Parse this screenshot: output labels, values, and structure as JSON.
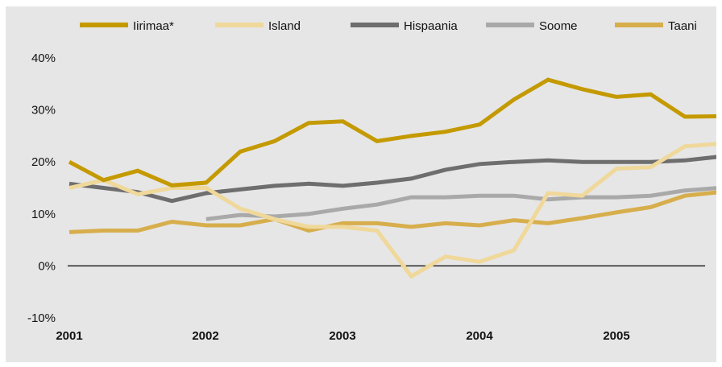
{
  "chart_data": {
    "type": "line",
    "title": "",
    "xlabel": "",
    "ylabel": "",
    "x_ticks": [
      "2001",
      "2002",
      "2003",
      "2004",
      "2005"
    ],
    "y_ticks": [
      "40%",
      "30%",
      "20%",
      "10%",
      "0%",
      "-10%"
    ],
    "ylim": [
      -10,
      40
    ],
    "xlim": [
      2001.0,
      2005.75
    ],
    "zero_line": true,
    "grid": false,
    "legend_position": "top",
    "series": [
      {
        "name": "Iirimaa*",
        "color": "#c49a00",
        "x": [
          2001.0,
          2001.25,
          2001.5,
          2001.75,
          2002.0,
          2002.25,
          2002.5,
          2002.75,
          2003.0,
          2003.25,
          2003.5,
          2003.75,
          2004.0,
          2004.25,
          2004.5,
          2004.75,
          2005.0,
          2005.25,
          2005.5,
          2005.75
        ],
        "values": [
          20.0,
          16.5,
          18.3,
          15.5,
          16.0,
          22.0,
          24.0,
          27.5,
          27.8,
          24.0,
          25.0,
          25.8,
          27.2,
          32.0,
          35.8,
          34.0,
          32.5,
          33.0,
          28.7,
          28.8
        ]
      },
      {
        "name": "Island",
        "color": "#efd89a",
        "x": [
          2001.0,
          2001.25,
          2001.5,
          2001.75,
          2002.0,
          2002.25,
          2002.5,
          2002.75,
          2003.0,
          2003.25,
          2003.5,
          2003.75,
          2004.0,
          2004.25,
          2004.5,
          2004.75,
          2005.0,
          2005.25,
          2005.5,
          2005.75
        ],
        "values": [
          15.0,
          16.5,
          13.8,
          15.0,
          15.0,
          11.0,
          9.0,
          7.5,
          7.5,
          6.8,
          -2.0,
          1.8,
          0.8,
          3.0,
          14.0,
          13.5,
          18.7,
          19.0,
          23.0,
          23.5
        ]
      },
      {
        "name": "Hispaania",
        "color": "#6e6e6e",
        "x": [
          2001.0,
          2001.25,
          2001.5,
          2001.75,
          2002.0,
          2002.25,
          2002.5,
          2002.75,
          2003.0,
          2003.25,
          2003.5,
          2003.75,
          2004.0,
          2004.25,
          2004.5,
          2004.75,
          2005.0,
          2005.25,
          2005.5,
          2005.75
        ],
        "values": [
          15.8,
          15.0,
          14.2,
          12.5,
          14.0,
          14.7,
          15.4,
          15.8,
          15.4,
          16.0,
          16.8,
          18.5,
          19.6,
          20.0,
          20.3,
          20.0,
          20.0,
          20.0,
          20.3,
          21.0
        ]
      },
      {
        "name": "Soome",
        "color": "#a9a9a9",
        "x": [
          2002.0,
          2002.25,
          2002.5,
          2002.75,
          2003.0,
          2003.25,
          2003.5,
          2003.75,
          2004.0,
          2004.25,
          2004.5,
          2004.75,
          2005.0,
          2005.25,
          2005.5,
          2005.75
        ],
        "values": [
          9.0,
          9.8,
          9.5,
          10.0,
          11.0,
          11.8,
          13.2,
          13.2,
          13.5,
          13.5,
          12.8,
          13.2,
          13.2,
          13.5,
          14.5,
          15.0
        ]
      },
      {
        "name": "Taani",
        "color": "#d7ae4c",
        "x": [
          2001.0,
          2001.25,
          2001.5,
          2001.75,
          2002.0,
          2002.25,
          2002.5,
          2002.75,
          2003.0,
          2003.25,
          2003.5,
          2003.75,
          2004.0,
          2004.25,
          2004.5,
          2004.75,
          2005.0,
          2005.25,
          2005.5,
          2005.75
        ],
        "values": [
          6.5,
          6.8,
          6.8,
          8.5,
          7.8,
          7.8,
          9.0,
          6.8,
          8.2,
          8.2,
          7.5,
          8.2,
          7.8,
          8.8,
          8.2,
          9.2,
          10.3,
          11.3,
          13.5,
          14.2
        ]
      }
    ]
  }
}
